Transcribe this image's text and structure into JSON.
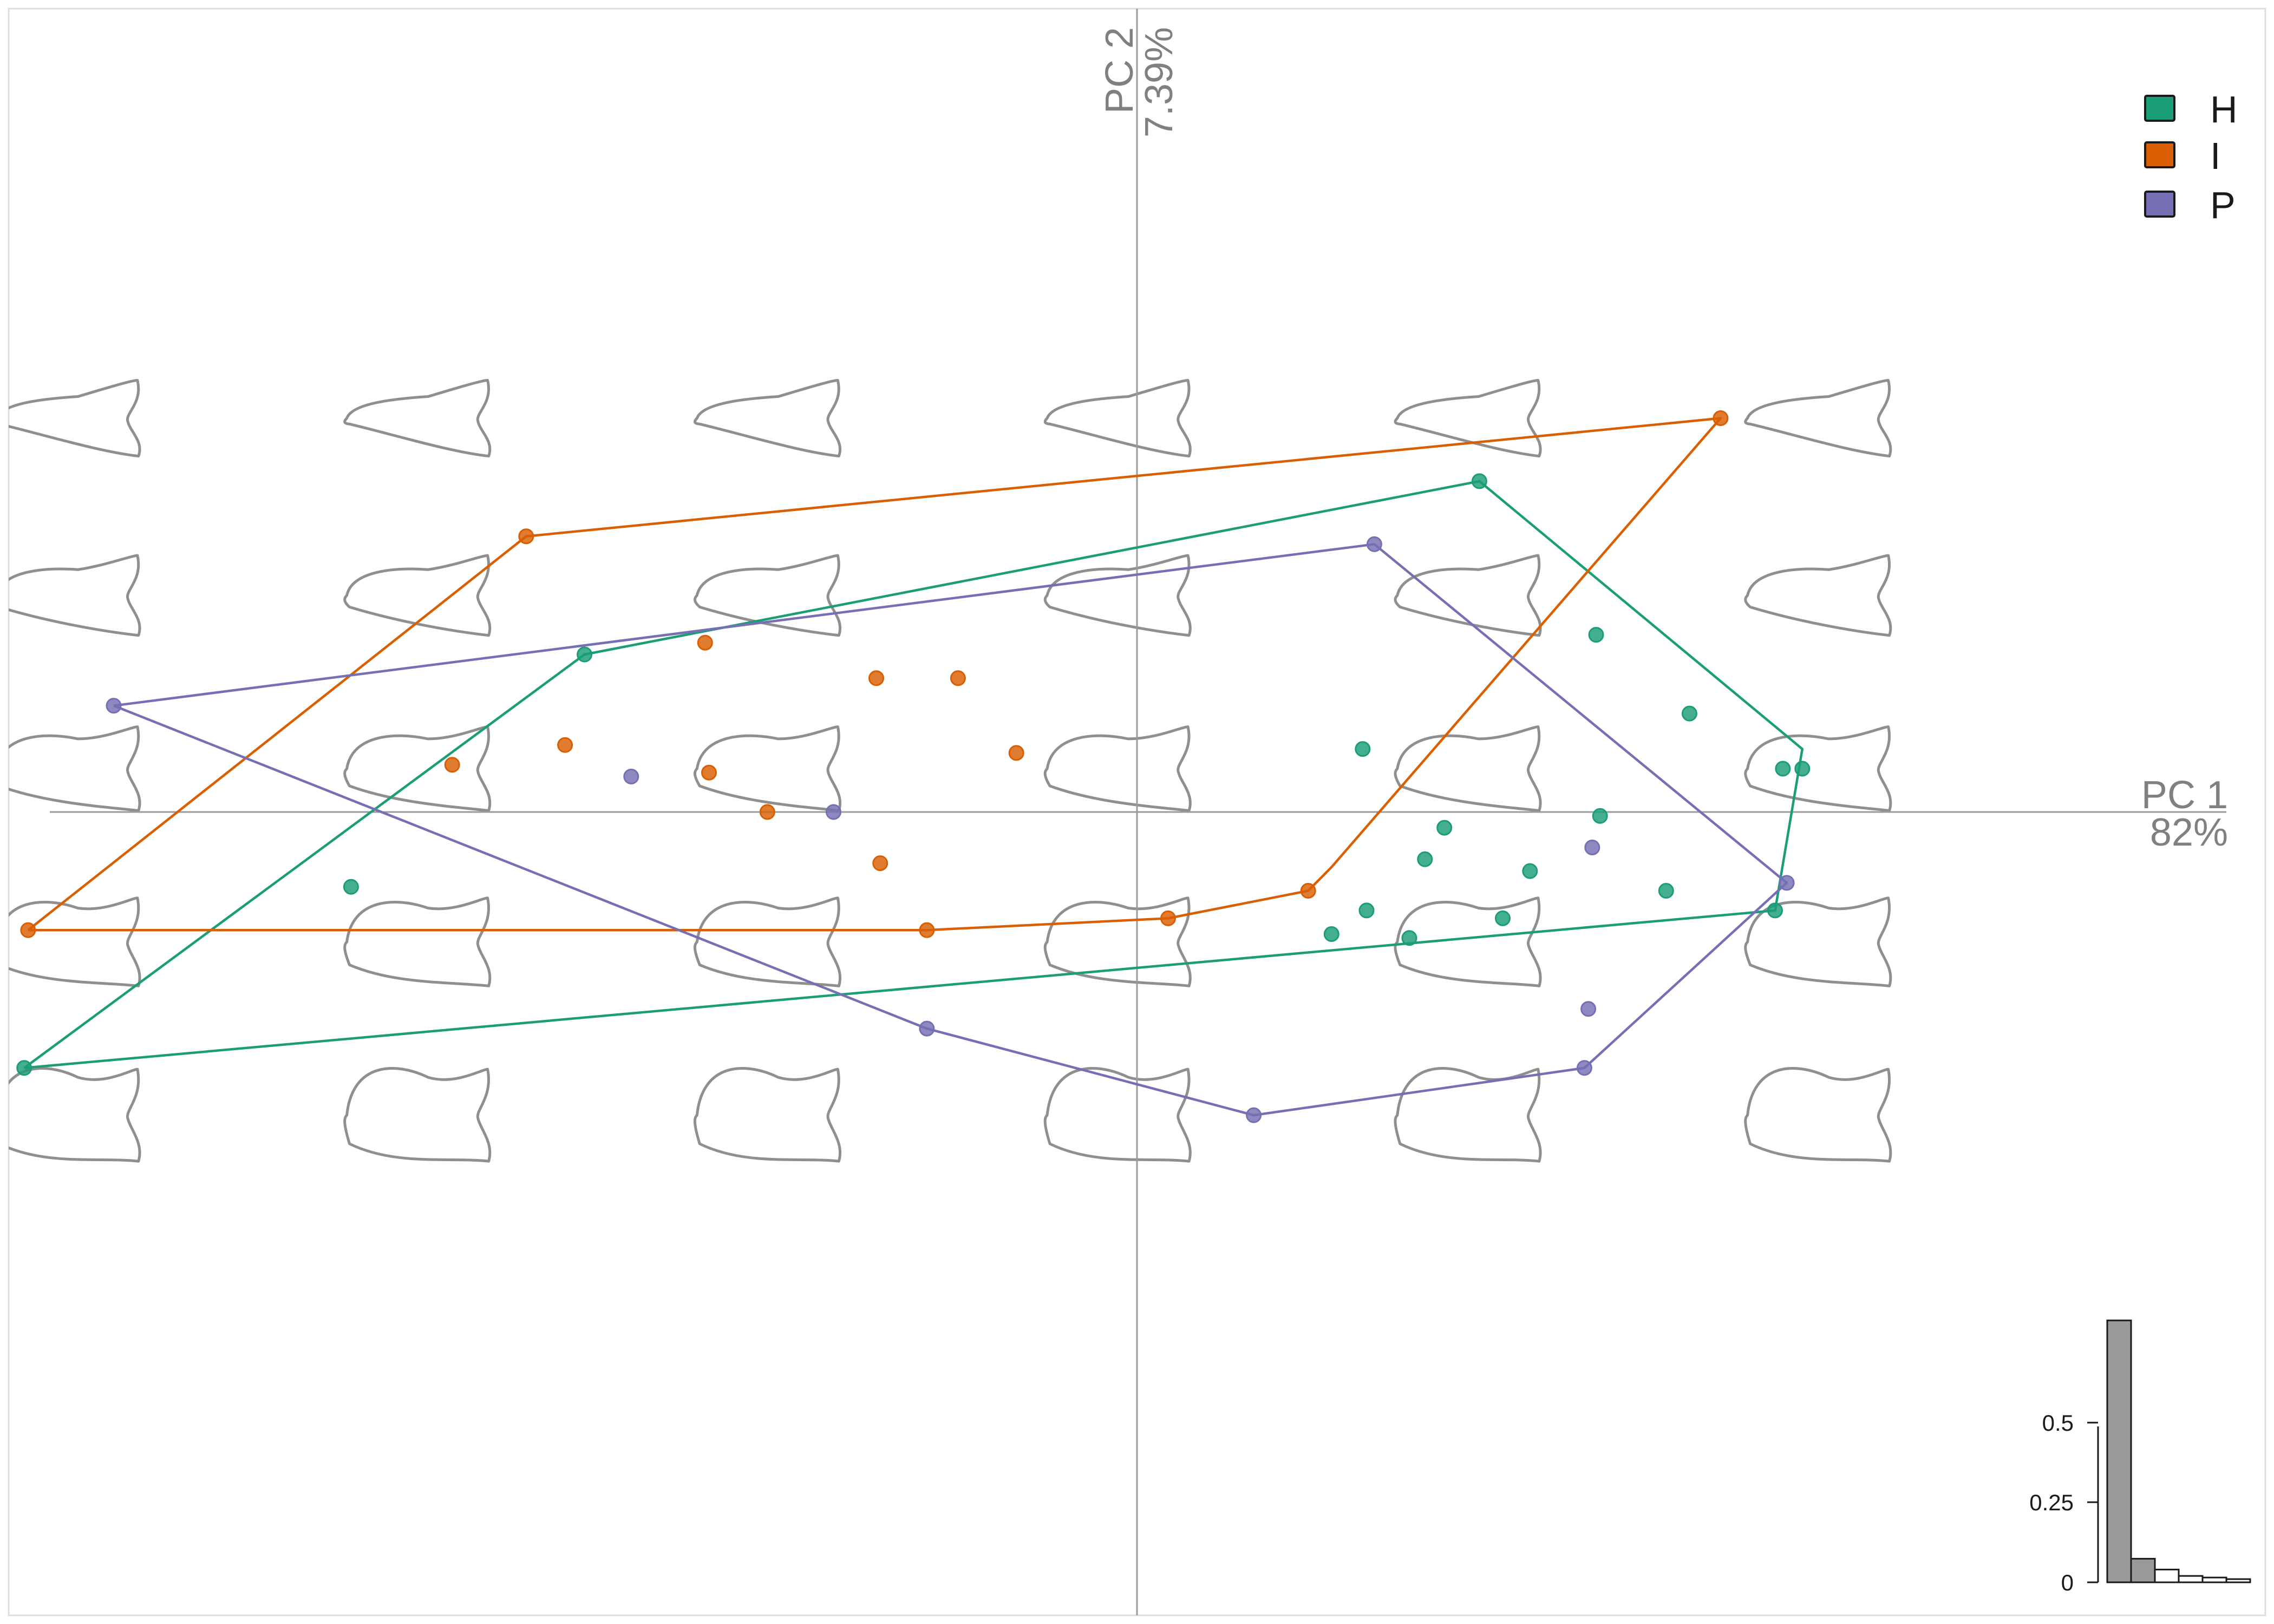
{
  "chart_data": {
    "type": "scatter",
    "subtype": "PCA morphospace with convex hulls",
    "title": "",
    "grid": false,
    "xaxis": {
      "label": "PC 1",
      "variance": "82%",
      "range": [
        -2.9,
        2.9
      ]
    },
    "yaxis": {
      "label": "PC 2",
      "variance": "7.39%",
      "range": [
        -2.04,
        2.04
      ]
    },
    "legend": {
      "position": "top-right",
      "entries": [
        {
          "key": "H",
          "label": "H",
          "color": "#1b9e77"
        },
        {
          "key": "I",
          "label": "I",
          "color": "#d95f02"
        },
        {
          "key": "P",
          "label": "P",
          "color": "#7570b3"
        }
      ]
    },
    "series": [
      {
        "name": "H",
        "color": "#1b9e77",
        "points": [
          [
            -2.02,
            -0.19
          ],
          [
            -1.42,
            0.4
          ],
          [
            0.88,
            0.84
          ],
          [
            1.18,
            0.45
          ],
          [
            1.42,
            0.25
          ],
          [
            1.71,
            0.11
          ],
          [
            1.66,
            0.11
          ],
          [
            0.58,
            0.16
          ],
          [
            1.19,
            -0.01
          ],
          [
            0.79,
            -0.04
          ],
          [
            0.74,
            -0.12
          ],
          [
            1.01,
            -0.15
          ],
          [
            1.36,
            -0.2
          ],
          [
            0.5,
            -0.31
          ],
          [
            0.59,
            -0.25
          ],
          [
            0.7,
            -0.32
          ],
          [
            0.94,
            -0.27
          ],
          [
            1.64,
            -0.25
          ],
          [
            -2.86,
            -0.65
          ]
        ],
        "hull": [
          [
            -2.86,
            -0.65
          ],
          [
            -1.42,
            0.4
          ],
          [
            0.88,
            0.84
          ],
          [
            1.71,
            0.16
          ],
          [
            1.64,
            -0.25
          ],
          [
            -2.86,
            -0.65
          ]
        ]
      },
      {
        "name": "I",
        "color": "#d95f02",
        "points": [
          [
            -1.57,
            0.7
          ],
          [
            -1.11,
            0.43
          ],
          [
            -0.67,
            0.34
          ],
          [
            -0.46,
            0.34
          ],
          [
            -1.47,
            0.17
          ],
          [
            -1.76,
            0.12
          ],
          [
            -1.1,
            0.1
          ],
          [
            -0.31,
            0.15
          ],
          [
            -0.95,
            0.0
          ],
          [
            -0.66,
            -0.13
          ],
          [
            -0.54,
            -0.3
          ],
          [
            0.08,
            -0.27
          ],
          [
            0.44,
            -0.2
          ],
          [
            1.5,
            1.0
          ],
          [
            -2.85,
            -0.3
          ]
        ],
        "hull": [
          [
            -2.85,
            -0.3
          ],
          [
            -1.57,
            0.7
          ],
          [
            1.5,
            1.0
          ],
          [
            0.5,
            -0.14
          ],
          [
            0.44,
            -0.2
          ],
          [
            0.08,
            -0.27
          ],
          [
            -0.54,
            -0.3
          ],
          [
            -2.85,
            -0.3
          ]
        ]
      },
      {
        "name": "P",
        "color": "#7570b3",
        "points": [
          [
            -1.3,
            0.09
          ],
          [
            -0.78,
            0.0
          ],
          [
            0.61,
            0.68
          ],
          [
            1.17,
            -0.09
          ],
          [
            1.67,
            -0.18
          ],
          [
            1.16,
            -0.5
          ],
          [
            1.15,
            -0.65
          ],
          [
            0.3,
            -0.77
          ],
          [
            -0.54,
            -0.55
          ],
          [
            -2.63,
            0.27
          ]
        ],
        "hull": [
          [
            -2.63,
            0.27
          ],
          [
            0.61,
            0.68
          ],
          [
            1.67,
            -0.18
          ],
          [
            1.15,
            -0.65
          ],
          [
            0.3,
            -0.77
          ],
          [
            -0.54,
            -0.55
          ],
          [
            -2.63,
            0.27
          ]
        ]
      }
    ],
    "eigenvalue_inset": {
      "position": "bottom-right",
      "ticks": [
        "0",
        "0.25",
        "0.5"
      ],
      "tick_values": [
        0,
        0.25,
        0.5
      ],
      "ylim": [
        0,
        0.82
      ],
      "values": [
        0.82,
        0.0739,
        0.04,
        0.02,
        0.015,
        0.01
      ],
      "highlighted_count": 2
    },
    "morphospace_shapes": {
      "columns_pc1": [
        -2.75,
        -1.85,
        -0.95,
        -0.05,
        0.85,
        1.75
      ],
      "rows_pc2": [
        1.0,
        0.55,
        0.11,
        -0.33,
        -0.77
      ]
    }
  }
}
